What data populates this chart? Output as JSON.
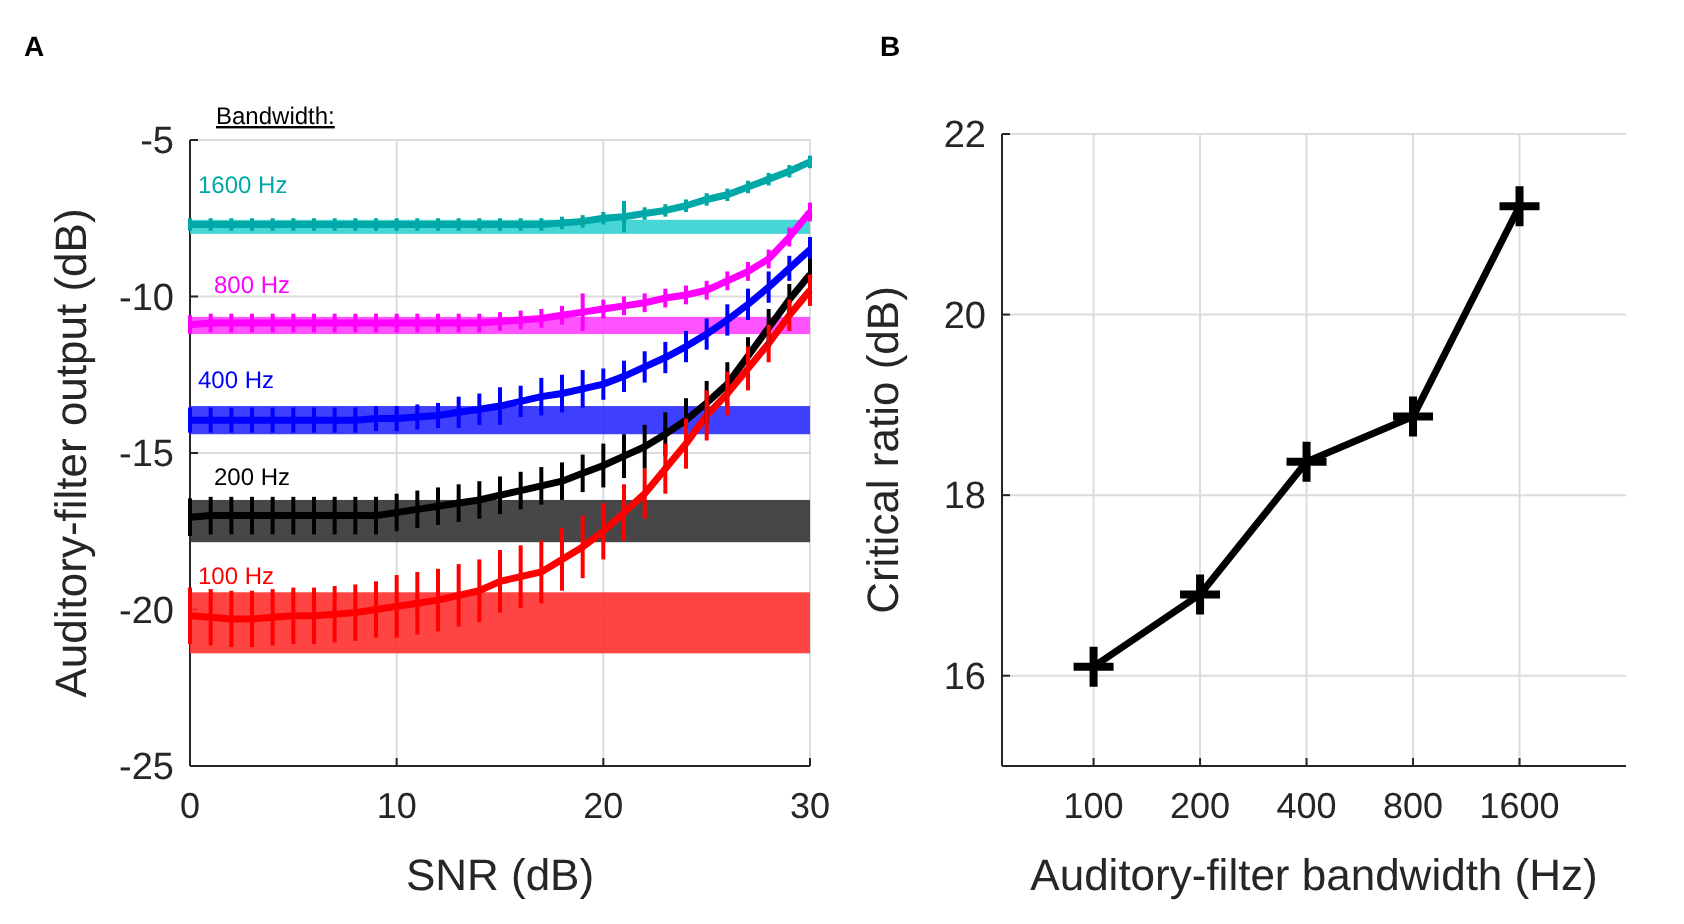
{
  "chart_data": [
    {
      "type": "line",
      "title": "A",
      "xlabel": "SNR (dB)",
      "ylabel": "Auditory-filter output (dB)",
      "legend_title": "Bandwidth:",
      "x": [
        0,
        1,
        2,
        3,
        4,
        5,
        6,
        7,
        8,
        9,
        10,
        11,
        12,
        13,
        14,
        15,
        16,
        17,
        18,
        19,
        20,
        21,
        22,
        23,
        24,
        25,
        26,
        27,
        28,
        29,
        30
      ],
      "series": [
        {
          "name": "1600 Hz",
          "color": "#00a8a8",
          "values": [
            -7.7,
            -7.7,
            -7.7,
            -7.7,
            -7.7,
            -7.7,
            -7.7,
            -7.7,
            -7.7,
            -7.7,
            -7.7,
            -7.7,
            -7.7,
            -7.7,
            -7.7,
            -7.7,
            -7.7,
            -7.7,
            -7.65,
            -7.6,
            -7.5,
            -7.45,
            -7.35,
            -7.25,
            -7.1,
            -6.9,
            -6.75,
            -6.5,
            -6.25,
            -6.0,
            -5.7
          ],
          "errors": [
            0.2,
            0.2,
            0.2,
            0.2,
            0.2,
            0.2,
            0.2,
            0.2,
            0.2,
            0.2,
            0.2,
            0.2,
            0.2,
            0.2,
            0.2,
            0.2,
            0.2,
            0.2,
            0.2,
            0.2,
            0.2,
            0.5,
            0.2,
            0.2,
            0.2,
            0.2,
            0.2,
            0.2,
            0.2,
            0.2,
            0.2
          ]
        },
        {
          "name": "800 Hz",
          "color": "#ff00ff",
          "values": [
            -10.9,
            -10.85,
            -10.85,
            -10.85,
            -10.85,
            -10.85,
            -10.85,
            -10.85,
            -10.85,
            -10.85,
            -10.85,
            -10.85,
            -10.85,
            -10.85,
            -10.85,
            -10.8,
            -10.75,
            -10.7,
            -10.6,
            -10.5,
            -10.4,
            -10.3,
            -10.2,
            -10.05,
            -9.95,
            -9.8,
            -9.5,
            -9.2,
            -8.8,
            -8.1,
            -7.3
          ],
          "errors": [
            0.3,
            0.3,
            0.3,
            0.3,
            0.3,
            0.3,
            0.3,
            0.3,
            0.3,
            0.3,
            0.3,
            0.3,
            0.3,
            0.3,
            0.3,
            0.3,
            0.3,
            0.3,
            0.3,
            0.6,
            0.3,
            0.3,
            0.3,
            0.3,
            0.3,
            0.3,
            0.3,
            0.3,
            0.3,
            0.3,
            0.3
          ]
        },
        {
          "name": "400 Hz",
          "color": "#0000ff",
          "values": [
            -13.95,
            -13.95,
            -13.95,
            -13.95,
            -13.95,
            -13.95,
            -13.95,
            -13.95,
            -13.95,
            -13.9,
            -13.9,
            -13.85,
            -13.8,
            -13.7,
            -13.6,
            -13.5,
            -13.35,
            -13.2,
            -13.1,
            -12.95,
            -12.8,
            -12.55,
            -12.25,
            -11.95,
            -11.6,
            -11.2,
            -10.75,
            -10.25,
            -9.7,
            -9.1,
            -8.5
          ],
          "errors": [
            0.4,
            0.4,
            0.4,
            0.4,
            0.4,
            0.4,
            0.4,
            0.4,
            0.4,
            0.4,
            0.4,
            0.4,
            0.4,
            0.5,
            0.5,
            0.6,
            0.5,
            0.6,
            0.6,
            0.6,
            0.5,
            0.5,
            0.5,
            0.5,
            0.5,
            0.5,
            0.5,
            0.5,
            0.5,
            0.4,
            0.4
          ]
        },
        {
          "name": "200 Hz",
          "color": "#000000",
          "values": [
            -17.05,
            -17.0,
            -17.0,
            -17.0,
            -17.0,
            -17.0,
            -17.0,
            -17.0,
            -17.0,
            -17.0,
            -16.9,
            -16.8,
            -16.7,
            -16.6,
            -16.5,
            -16.35,
            -16.2,
            -16.05,
            -15.9,
            -15.65,
            -15.4,
            -15.1,
            -14.8,
            -14.4,
            -13.95,
            -13.4,
            -12.8,
            -11.9,
            -11.0,
            -10.1,
            -9.3
          ],
          "errors": [
            0.6,
            0.6,
            0.6,
            0.6,
            0.6,
            0.6,
            0.6,
            0.6,
            0.6,
            0.6,
            0.6,
            0.6,
            0.6,
            0.6,
            0.6,
            0.6,
            0.6,
            0.6,
            0.6,
            0.6,
            0.7,
            0.7,
            0.7,
            0.7,
            0.7,
            0.7,
            0.7,
            0.6,
            0.6,
            0.5,
            0.5
          ]
        },
        {
          "name": "100 Hz",
          "color": "#ff0000",
          "values": [
            -20.2,
            -20.25,
            -20.3,
            -20.3,
            -20.25,
            -20.2,
            -20.2,
            -20.15,
            -20.1,
            -20.0,
            -19.9,
            -19.8,
            -19.7,
            -19.55,
            -19.4,
            -19.1,
            -18.95,
            -18.8,
            -18.4,
            -18.0,
            -17.5,
            -16.9,
            -16.3,
            -15.5,
            -14.7,
            -13.8,
            -13.1,
            -12.3,
            -11.5,
            -10.6,
            -9.8
          ],
          "errors": [
            0.9,
            0.9,
            0.9,
            0.9,
            0.9,
            0.9,
            0.9,
            0.9,
            0.9,
            0.9,
            1.0,
            1.0,
            1.0,
            1.0,
            1.0,
            1.0,
            1.0,
            1.0,
            1.0,
            1.0,
            0.9,
            0.9,
            0.8,
            0.8,
            0.8,
            0.8,
            0.7,
            0.7,
            0.6,
            0.5,
            0.5
          ]
        }
      ],
      "bands": [
        {
          "axis": "y",
          "from": -8.0,
          "to": -7.55,
          "color": "#33d1d1"
        },
        {
          "axis": "y",
          "from": -11.2,
          "to": -10.65,
          "color": "#ff40ff"
        },
        {
          "axis": "y",
          "from": -14.4,
          "to": -13.5,
          "color": "#2a2aff"
        },
        {
          "axis": "y",
          "from": -17.85,
          "to": -16.5,
          "color": "#333333"
        },
        {
          "axis": "y",
          "from": -21.4,
          "to": -19.45,
          "color": "#ff3030"
        }
      ],
      "xlim": [
        0,
        30
      ],
      "xticks": [
        0,
        10,
        20,
        30
      ],
      "ylim": [
        -25,
        -5
      ],
      "yticks": [
        -25,
        -20,
        -15,
        -10,
        -5
      ],
      "grid": true,
      "marker": "none",
      "line_style": "solid"
    },
    {
      "type": "line",
      "title": "B",
      "xlabel": "Auditory-filter bandwidth (Hz)",
      "ylabel": "Critical ratio (dB)",
      "categories": [
        "100",
        "200",
        "400",
        "800",
        "1600"
      ],
      "series": [
        {
          "color": "#000000",
          "values": [
            16.1,
            16.9,
            18.37,
            18.87,
            21.2
          ]
        }
      ],
      "ylim": [
        15,
        22
      ],
      "yticks": [
        16,
        18,
        20,
        22
      ],
      "grid": true,
      "marker": "cross",
      "line_style": "solid"
    }
  ]
}
